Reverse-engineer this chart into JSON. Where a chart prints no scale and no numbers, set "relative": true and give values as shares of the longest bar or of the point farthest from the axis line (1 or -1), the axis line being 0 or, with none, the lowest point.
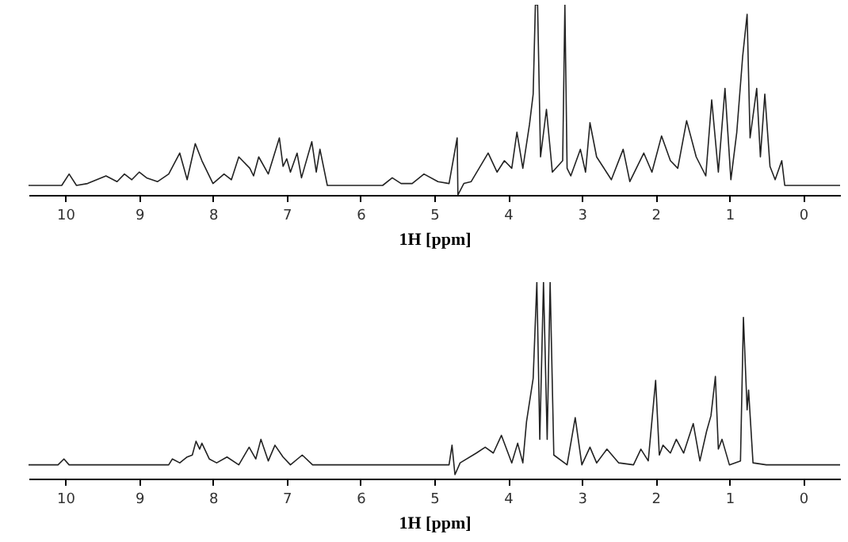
{
  "chart_data": [
    {
      "type": "line",
      "xlabel": "1H [ppm]",
      "relative": true,
      "xlim": [
        10.5,
        -0.5
      ],
      "xticks": [
        10,
        9,
        8,
        7,
        6,
        5,
        4,
        3,
        2,
        1,
        0
      ],
      "x": [
        10.5,
        10.05,
        9.95,
        9.85,
        9.7,
        9.45,
        9.3,
        9.2,
        9.1,
        9.0,
        8.9,
        8.75,
        8.6,
        8.45,
        8.35,
        8.24,
        8.15,
        8.0,
        7.85,
        7.75,
        7.65,
        7.5,
        7.45,
        7.38,
        7.25,
        7.1,
        7.05,
        7.0,
        6.95,
        6.86,
        6.8,
        6.66,
        6.6,
        6.55,
        6.45,
        6.0,
        5.7,
        5.57,
        5.45,
        5.3,
        5.14,
        4.95,
        4.8,
        4.69,
        4.68,
        4.6,
        4.5,
        4.27,
        4.15,
        4.05,
        3.95,
        3.88,
        3.8,
        3.71,
        3.66,
        3.63,
        3.6,
        3.56,
        3.48,
        3.4,
        3.26,
        3.23,
        3.2,
        3.15,
        3.02,
        2.95,
        2.89,
        2.8,
        2.6,
        2.44,
        2.35,
        2.16,
        2.05,
        1.92,
        1.8,
        1.7,
        1.58,
        1.45,
        1.32,
        1.24,
        1.15,
        1.06,
        0.98,
        0.9,
        0.82,
        0.76,
        0.72,
        0.63,
        0.58,
        0.52,
        0.45,
        0.38,
        0.29,
        0.25,
        0.0,
        -0.5
      ],
      "series": [
        {
          "color": "#222222",
          "values": [
            0.05,
            0.05,
            0.11,
            0.05,
            0.06,
            0.1,
            0.07,
            0.11,
            0.08,
            0.12,
            0.09,
            0.07,
            0.11,
            0.22,
            0.08,
            0.27,
            0.18,
            0.06,
            0.11,
            0.08,
            0.2,
            0.14,
            0.1,
            0.2,
            0.11,
            0.3,
            0.15,
            0.19,
            0.12,
            0.22,
            0.09,
            0.28,
            0.12,
            0.24,
            0.05,
            0.05,
            0.05,
            0.09,
            0.06,
            0.06,
            0.11,
            0.07,
            0.06,
            0.3,
            0.0,
            0.06,
            0.07,
            0.22,
            0.12,
            0.18,
            0.14,
            0.33,
            0.14,
            0.37,
            0.53,
            1.0,
            1.0,
            0.2,
            0.45,
            0.12,
            0.18,
            1.0,
            0.14,
            0.1,
            0.24,
            0.12,
            0.38,
            0.2,
            0.08,
            0.24,
            0.07,
            0.22,
            0.12,
            0.31,
            0.18,
            0.14,
            0.39,
            0.2,
            0.1,
            0.5,
            0.12,
            0.56,
            0.08,
            0.33,
            0.73,
            0.95,
            0.3,
            0.56,
            0.2,
            0.53,
            0.15,
            0.08,
            0.18,
            0.05,
            0.05,
            0.05
          ]
        }
      ]
    },
    {
      "type": "line",
      "xlabel": "1H [ppm]",
      "relative": true,
      "xlim": [
        10.5,
        -0.5
      ],
      "xticks": [
        10,
        9,
        8,
        7,
        6,
        5,
        4,
        3,
        2,
        1,
        0
      ],
      "x": [
        10.5,
        10.1,
        10.02,
        9.95,
        8.6,
        8.55,
        8.45,
        8.35,
        8.28,
        8.23,
        8.18,
        8.15,
        8.05,
        7.95,
        7.81,
        7.65,
        7.51,
        7.42,
        7.35,
        7.25,
        7.16,
        7.05,
        6.95,
        6.79,
        6.65,
        5.0,
        4.8,
        4.76,
        4.72,
        4.65,
        4.43,
        4.31,
        4.2,
        4.09,
        3.95,
        3.87,
        3.8,
        3.75,
        3.66,
        3.61,
        3.57,
        3.52,
        3.47,
        3.43,
        3.38,
        3.2,
        3.09,
        3.0,
        2.89,
        2.8,
        2.66,
        2.5,
        2.3,
        2.2,
        2.1,
        2.0,
        1.95,
        1.9,
        1.8,
        1.72,
        1.62,
        1.49,
        1.4,
        1.31,
        1.25,
        1.19,
        1.15,
        1.1,
        1.0,
        0.85,
        0.81,
        0.76,
        0.74,
        0.68,
        0.5,
        -0.5
      ],
      "series": [
        {
          "color": "#222222",
          "values": [
            0.07,
            0.07,
            0.1,
            0.07,
            0.07,
            0.1,
            0.08,
            0.11,
            0.12,
            0.19,
            0.15,
            0.18,
            0.1,
            0.08,
            0.11,
            0.07,
            0.16,
            0.1,
            0.2,
            0.09,
            0.17,
            0.11,
            0.07,
            0.12,
            0.07,
            0.07,
            0.07,
            0.17,
            0.02,
            0.08,
            0.13,
            0.16,
            0.13,
            0.22,
            0.08,
            0.18,
            0.08,
            0.29,
            0.51,
            1.0,
            0.2,
            1.0,
            0.2,
            1.0,
            0.12,
            0.07,
            0.31,
            0.07,
            0.16,
            0.08,
            0.15,
            0.08,
            0.07,
            0.15,
            0.09,
            0.5,
            0.12,
            0.17,
            0.13,
            0.2,
            0.13,
            0.28,
            0.09,
            0.24,
            0.32,
            0.52,
            0.15,
            0.2,
            0.07,
            0.09,
            0.82,
            0.35,
            0.45,
            0.08,
            0.07,
            0.07
          ]
        }
      ]
    }
  ]
}
